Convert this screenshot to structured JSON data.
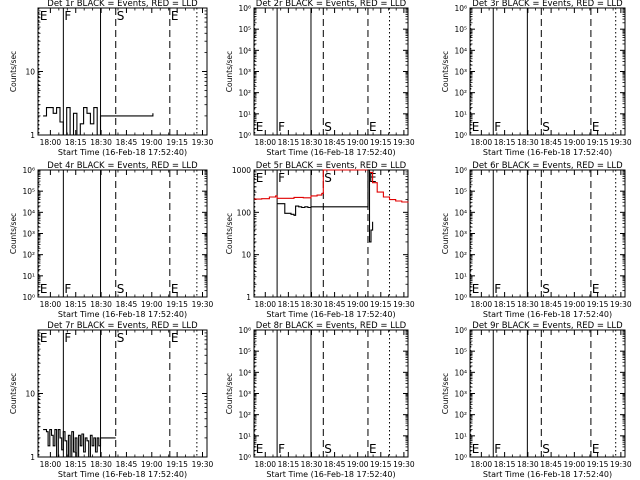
{
  "chart_data": [
    {
      "type": "line",
      "title": "Det 1r BLACK = Events, RED = LLD",
      "ylabel": "Counts/sec",
      "xlabel": "Start Time (16-Feb-18 17:52:40)",
      "x_tick_labels": [
        "18:00",
        "18:15",
        "18:30",
        "18:45",
        "19:00",
        "19:15",
        "19:30"
      ],
      "x_tick_values": [
        7.33,
        22.33,
        37.33,
        52.33,
        67.33,
        82.33,
        97.33
      ],
      "xlim": [
        0,
        100
      ],
      "yscale": "log",
      "ylim": [
        1,
        100
      ],
      "y_tick_labels": [
        "1",
        "10"
      ],
      "markers": [
        {
          "label": "E",
          "x": 0.5,
          "style": "dotted"
        },
        {
          "label": "F",
          "x": 15,
          "style": "solid"
        },
        {
          "label": "",
          "x": 37,
          "style": "solid"
        },
        {
          "label": "S",
          "x": 46,
          "style": "dashed"
        },
        {
          "label": "E",
          "x": 78,
          "style": "dashed"
        },
        {
          "label": "",
          "x": 94,
          "style": "dotted"
        }
      ],
      "marker_label_row": "top",
      "series": [
        {
          "name": "Events",
          "color": "#000000",
          "x": [
            3,
            5,
            7,
            9,
            11,
            13,
            15,
            17,
            19,
            21,
            23,
            25,
            27,
            29,
            31,
            33,
            35,
            37,
            40,
            44,
            46,
            68
          ],
          "y": [
            2,
            2.7,
            2.7,
            2.2,
            2.7,
            1.6,
            1,
            2.7,
            1,
            2.2,
            1,
            1.5,
            2.7,
            2.2,
            1.5,
            2.7,
            1,
            2,
            2,
            2,
            2,
            2.2
          ]
        }
      ]
    },
    {
      "type": "line",
      "title": "Det 2r BLACK = Events, RED = LLD",
      "ylabel": "Counts/sec",
      "xlabel": "Start Time (16-Feb-18 17:52:40)",
      "x_tick_labels": [
        "18:00",
        "18:15",
        "18:30",
        "18:45",
        "19:00",
        "19:15",
        "19:30"
      ],
      "x_tick_values": [
        7.33,
        22.33,
        37.33,
        52.33,
        67.33,
        82.33,
        97.33
      ],
      "xlim": [
        0,
        100
      ],
      "yscale": "log",
      "ylim": [
        1,
        1000000
      ],
      "y_tick_labels": [
        "10⁰",
        "10¹",
        "10²",
        "10³",
        "10⁴",
        "10⁵",
        "10⁶"
      ],
      "markers": [
        {
          "label": "E",
          "x": 0.5,
          "style": "dotted"
        },
        {
          "label": "F",
          "x": 15,
          "style": "solid"
        },
        {
          "label": "",
          "x": 37,
          "style": "solid"
        },
        {
          "label": "S",
          "x": 45,
          "style": "dashed"
        },
        {
          "label": "E",
          "x": 74,
          "style": "dashed"
        },
        {
          "label": "",
          "x": 88,
          "style": "dotted"
        }
      ],
      "marker_label_row": "bottom",
      "series": []
    },
    {
      "type": "line",
      "title": "Det 3r BLACK = Events, RED = LLD",
      "ylabel": "Counts/sec",
      "xlabel": "Start Time (16-Feb-18 17:52:40)",
      "x_tick_labels": [
        "18:00",
        "18:15",
        "18:30",
        "18:45",
        "19:00",
        "19:15",
        "19:30"
      ],
      "x_tick_values": [
        7.33,
        22.33,
        37.33,
        52.33,
        67.33,
        82.33,
        97.33
      ],
      "xlim": [
        0,
        100
      ],
      "yscale": "log",
      "ylim": [
        1,
        1000000
      ],
      "y_tick_labels": [
        "10⁰",
        "10¹",
        "10²",
        "10³",
        "10⁴",
        "10⁵",
        "10⁶"
      ],
      "markers": [
        {
          "label": "E",
          "x": 0.5,
          "style": "dotted"
        },
        {
          "label": "F",
          "x": 15,
          "style": "solid"
        },
        {
          "label": "",
          "x": 37,
          "style": "solid"
        },
        {
          "label": "S",
          "x": 46,
          "style": "dashed"
        },
        {
          "label": "E",
          "x": 78,
          "style": "dashed"
        },
        {
          "label": "",
          "x": 94,
          "style": "dotted"
        }
      ],
      "marker_label_row": "bottom",
      "series": []
    },
    {
      "type": "line",
      "title": "Det 4r BLACK = Events, RED = LLD",
      "ylabel": "Counts/sec",
      "xlabel": "Start Time (16-Feb-18 17:52:40)",
      "x_tick_labels": [
        "18:00",
        "18:15",
        "18:30",
        "18:45",
        "19:00",
        "19:15",
        "19:30"
      ],
      "x_tick_values": [
        7.33,
        22.33,
        37.33,
        52.33,
        67.33,
        82.33,
        97.33
      ],
      "xlim": [
        0,
        100
      ],
      "yscale": "log",
      "ylim": [
        1,
        1000000
      ],
      "y_tick_labels": [
        "10⁰",
        "10¹",
        "10²",
        "10³",
        "10⁴",
        "10⁵",
        "10⁶"
      ],
      "markers": [
        {
          "label": "E",
          "x": 0.5,
          "style": "dotted"
        },
        {
          "label": "F",
          "x": 15,
          "style": "solid"
        },
        {
          "label": "",
          "x": 37,
          "style": "solid"
        },
        {
          "label": "S",
          "x": 46,
          "style": "dashed"
        },
        {
          "label": "E",
          "x": 78,
          "style": "dashed"
        },
        {
          "label": "",
          "x": 94,
          "style": "dotted"
        }
      ],
      "marker_label_row": "bottom",
      "series": []
    },
    {
      "type": "line",
      "title": "Det 5r BLACK = Events, RED = LLD",
      "ylabel": "Counts/sec",
      "xlabel": "Start Time (16-Feb-18 17:52:40)",
      "x_tick_labels": [
        "18:00",
        "18:15",
        "18:30",
        "18:45",
        "19:00",
        "19:15",
        "19:30"
      ],
      "x_tick_values": [
        7.33,
        22.33,
        37.33,
        52.33,
        67.33,
        82.33,
        97.33
      ],
      "xlim": [
        0,
        100
      ],
      "yscale": "log",
      "ylim": [
        1,
        1000
      ],
      "y_tick_labels": [
        "1",
        "10",
        "100",
        "1000"
      ],
      "markers": [
        {
          "label": "E",
          "x": 0.5,
          "style": "dotted"
        },
        {
          "label": "F",
          "x": 15,
          "style": "solid"
        },
        {
          "label": "",
          "x": 37,
          "style": "solid"
        },
        {
          "label": "S",
          "x": 45,
          "style": "dashed"
        },
        {
          "label": "E",
          "x": 74,
          "style": "dashed"
        },
        {
          "label": "",
          "x": 88,
          "style": "dotted"
        }
      ],
      "marker_label_row": "top",
      "series": [
        {
          "name": "LLD",
          "color": "#e00000",
          "x": [
            0,
            5,
            10,
            14,
            15,
            20,
            26,
            32,
            37,
            41,
            44,
            45,
            47,
            50,
            52,
            54,
            56,
            58,
            60,
            62,
            64,
            66,
            68,
            70,
            72,
            74,
            75,
            77,
            80,
            84,
            88,
            92,
            96,
            100
          ],
          "y": [
            205,
            210,
            230,
            245,
            215,
            215,
            225,
            220,
            245,
            255,
            280,
            1000,
            1000,
            1000,
            1000,
            1000,
            1000,
            1000,
            1000,
            1000,
            1000,
            1000,
            1000,
            1000,
            1000,
            1000,
            880,
            500,
            300,
            230,
            200,
            185,
            175,
            170
          ]
        },
        {
          "name": "Events",
          "color": "#000000",
          "x": [
            15,
            17,
            19,
            20,
            22,
            24,
            26,
            27,
            29,
            31,
            33,
            35,
            37,
            74,
            75,
            76,
            77
          ],
          "y": [
            160,
            160,
            160,
            95,
            95,
            90,
            85,
            140,
            135,
            130,
            135,
            130,
            135,
            1000,
            20,
            38,
            60
          ]
        }
      ]
    },
    {
      "type": "line",
      "title": "Det 6r BLACK = Events, RED = LLD",
      "ylabel": "Counts/sec",
      "xlabel": "Start Time (16-Feb-18 17:52:40)",
      "x_tick_labels": [
        "18:00",
        "18:15",
        "18:30",
        "18:45",
        "19:00",
        "19:15",
        "19:30"
      ],
      "x_tick_values": [
        7.33,
        22.33,
        37.33,
        52.33,
        67.33,
        82.33,
        97.33
      ],
      "xlim": [
        0,
        100
      ],
      "yscale": "log",
      "ylim": [
        1,
        1000000
      ],
      "y_tick_labels": [
        "10⁰",
        "10¹",
        "10²",
        "10³",
        "10⁴",
        "10⁵",
        "10⁶"
      ],
      "markers": [
        {
          "label": "E",
          "x": 0.5,
          "style": "dotted"
        },
        {
          "label": "F",
          "x": 15,
          "style": "solid"
        },
        {
          "label": "",
          "x": 37,
          "style": "solid"
        },
        {
          "label": "S",
          "x": 46,
          "style": "dashed"
        },
        {
          "label": "E",
          "x": 78,
          "style": "dashed"
        },
        {
          "label": "",
          "x": 94,
          "style": "dotted"
        }
      ],
      "marker_label_row": "bottom",
      "series": []
    },
    {
      "type": "line",
      "title": "Det 7r BLACK = Events, RED = LLD",
      "ylabel": "Counts/sec",
      "xlabel": "Start Time (16-Feb-18 17:52:40)",
      "x_tick_labels": [
        "18:00",
        "18:15",
        "18:30",
        "18:45",
        "19:00",
        "19:15",
        "19:30"
      ],
      "x_tick_values": [
        7.33,
        22.33,
        37.33,
        52.33,
        67.33,
        82.33,
        97.33
      ],
      "xlim": [
        0,
        100
      ],
      "yscale": "log",
      "ylim": [
        1,
        100
      ],
      "y_tick_labels": [
        "1",
        "10"
      ],
      "markers": [
        {
          "label": "E",
          "x": 0.5,
          "style": "dotted"
        },
        {
          "label": "F",
          "x": 15,
          "style": "solid"
        },
        {
          "label": "",
          "x": 37,
          "style": "solid"
        },
        {
          "label": "S",
          "x": 46,
          "style": "dashed"
        },
        {
          "label": "E",
          "x": 78,
          "style": "dashed"
        },
        {
          "label": "",
          "x": 94,
          "style": "dotted"
        }
      ],
      "marker_label_row": "top",
      "series": [
        {
          "name": "Events",
          "color": "#000000",
          "x": [
            3,
            5,
            6,
            7,
            8,
            9,
            10,
            11,
            12,
            13,
            14,
            15,
            16,
            17,
            18,
            19,
            20,
            21,
            22,
            23,
            24,
            25,
            26,
            27,
            28,
            29,
            30,
            31,
            32,
            33,
            34,
            35,
            36,
            37,
            40,
            44,
            46
          ],
          "y": [
            2.7,
            2.5,
            1.5,
            2.7,
            2.2,
            1.5,
            2.7,
            1,
            2.7,
            2,
            1.3,
            2.5,
            1.8,
            1,
            2.2,
            1,
            2.5,
            1.2,
            2,
            1,
            2.2,
            1.5,
            2.3,
            1.2,
            2,
            1.8,
            1,
            2.2,
            1.5,
            2,
            1.2,
            2,
            1.5,
            2,
            2,
            2,
            2
          ]
        }
      ]
    },
    {
      "type": "line",
      "title": "Det 8r BLACK = Events, RED = LLD",
      "ylabel": "Counts/sec",
      "xlabel": "Start Time (16-Feb-18 17:52:40)",
      "x_tick_labels": [
        "18:00",
        "18:15",
        "18:30",
        "18:45",
        "19:00",
        "19:15",
        "19:30"
      ],
      "x_tick_values": [
        7.33,
        22.33,
        37.33,
        52.33,
        67.33,
        82.33,
        97.33
      ],
      "xlim": [
        0,
        100
      ],
      "yscale": "log",
      "ylim": [
        1,
        1000000
      ],
      "y_tick_labels": [
        "10⁰",
        "10¹",
        "10²",
        "10³",
        "10⁴",
        "10⁵",
        "10⁶"
      ],
      "markers": [
        {
          "label": "E",
          "x": 0.5,
          "style": "dotted"
        },
        {
          "label": "F",
          "x": 15,
          "style": "solid"
        },
        {
          "label": "",
          "x": 37,
          "style": "solid"
        },
        {
          "label": "S",
          "x": 45,
          "style": "dashed"
        },
        {
          "label": "E",
          "x": 74,
          "style": "dashed"
        },
        {
          "label": "",
          "x": 88,
          "style": "dotted"
        }
      ],
      "marker_label_row": "bottom",
      "series": []
    },
    {
      "type": "line",
      "title": "Det 9r BLACK = Events, RED = LLD",
      "ylabel": "Counts/sec",
      "xlabel": "Start Time (16-Feb-18 17:52:40)",
      "x_tick_labels": [
        "18:00",
        "18:15",
        "18:30",
        "18:45",
        "19:00",
        "19:15",
        "19:30"
      ],
      "x_tick_values": [
        7.33,
        22.33,
        37.33,
        52.33,
        67.33,
        82.33,
        97.33
      ],
      "xlim": [
        0,
        100
      ],
      "yscale": "log",
      "ylim": [
        1,
        1000000
      ],
      "y_tick_labels": [
        "10⁰",
        "10¹",
        "10²",
        "10³",
        "10⁴",
        "10⁵",
        "10⁶"
      ],
      "markers": [
        {
          "label": "E",
          "x": 0.5,
          "style": "dotted"
        },
        {
          "label": "F",
          "x": 15,
          "style": "solid"
        },
        {
          "label": "",
          "x": 37,
          "style": "solid"
        },
        {
          "label": "S",
          "x": 46,
          "style": "dashed"
        },
        {
          "label": "E",
          "x": 78,
          "style": "dashed"
        },
        {
          "label": "",
          "x": 94,
          "style": "dotted"
        }
      ],
      "marker_label_row": "bottom",
      "series": []
    }
  ]
}
